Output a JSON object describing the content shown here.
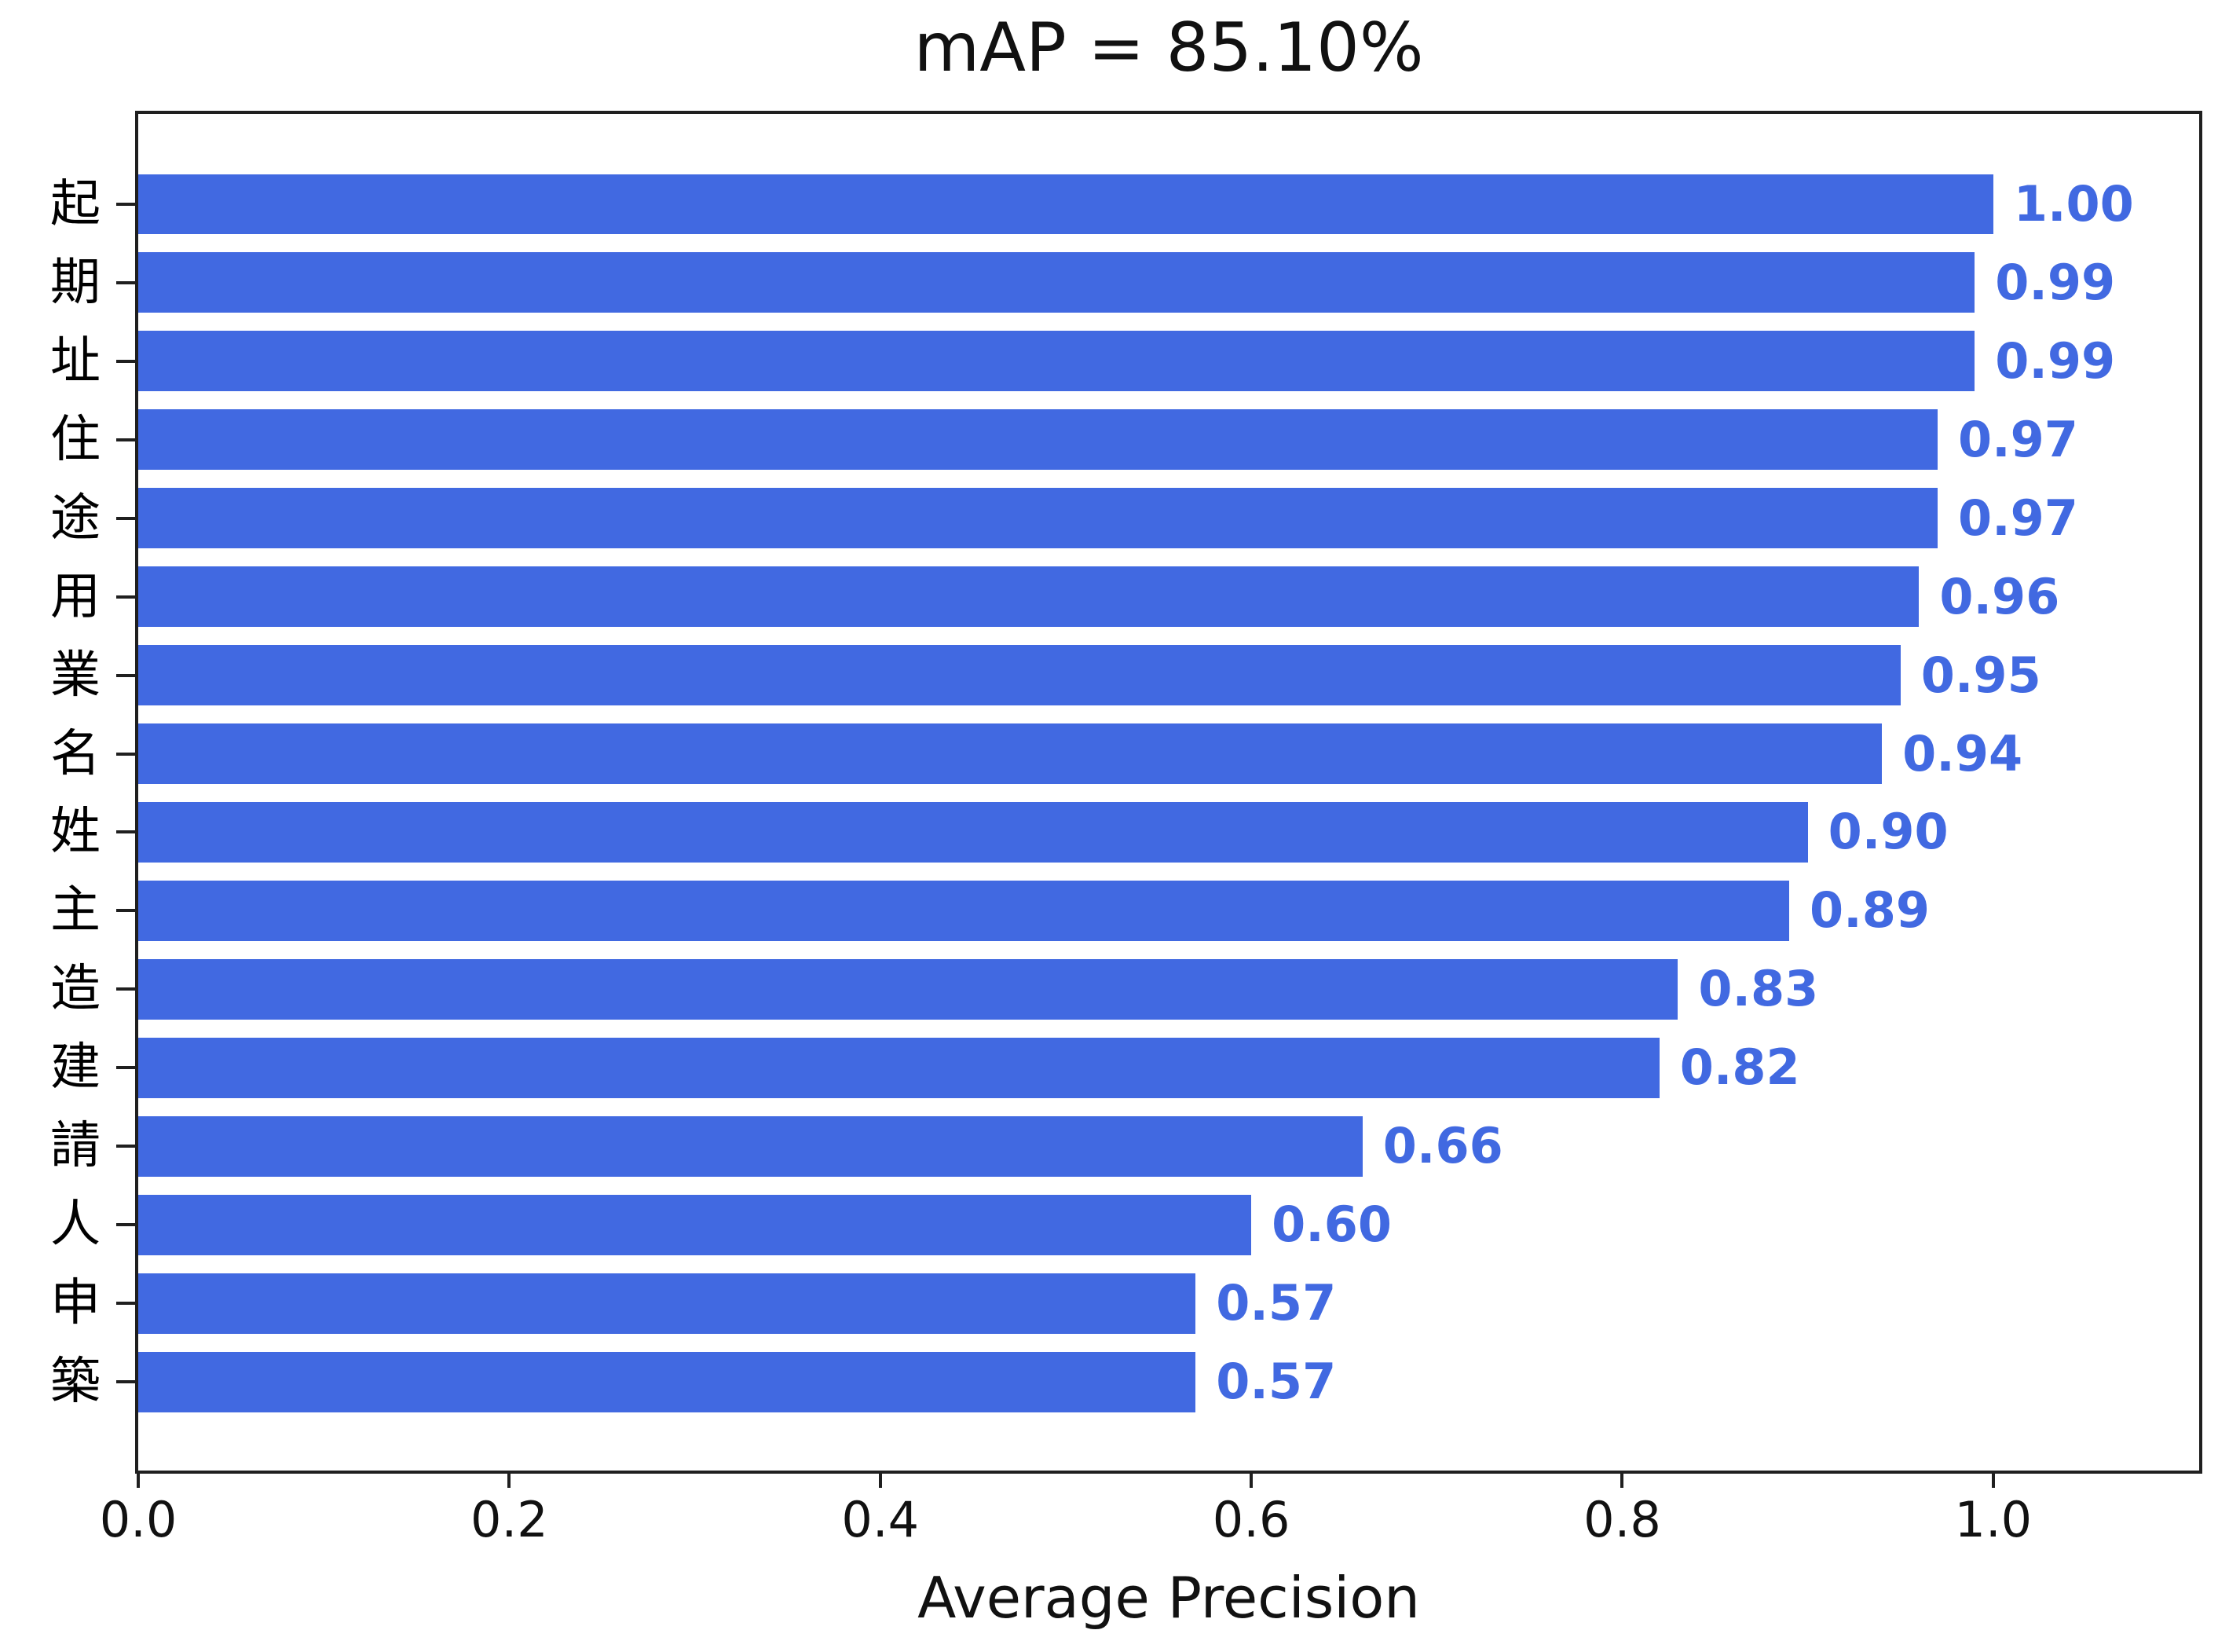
{
  "chart_data": {
    "type": "bar",
    "orientation": "horizontal",
    "title": "mAP = 85.10%",
    "xlabel": "Average Precision",
    "ylabel": "",
    "categories": [
      "起",
      "期",
      "址",
      "住",
      "途",
      "用",
      "業",
      "名",
      "姓",
      "主",
      "造",
      "建",
      "請",
      "人",
      "申",
      "築"
    ],
    "values": [
      1.0,
      0.99,
      0.99,
      0.97,
      0.97,
      0.96,
      0.95,
      0.94,
      0.9,
      0.89,
      0.83,
      0.82,
      0.66,
      0.6,
      0.57,
      0.57
    ],
    "value_labels": [
      "1.00",
      "0.99",
      "0.99",
      "0.97",
      "0.97",
      "0.96",
      "0.95",
      "0.94",
      "0.90",
      "0.89",
      "0.83",
      "0.82",
      "0.66",
      "0.60",
      "0.57",
      "0.57"
    ],
    "xticks": [
      "0.0",
      "0.2",
      "0.4",
      "0.6",
      "0.8",
      "1.0"
    ],
    "xtick_values": [
      0.0,
      0.2,
      0.4,
      0.6,
      0.8,
      1.0
    ],
    "xlim": [
      0,
      1.111
    ],
    "grid": false,
    "legend": null,
    "bar_color": "#4169E1",
    "value_label_color": "#4169E1",
    "axis_color": "#1f1f1f",
    "text_color": "#111111"
  }
}
